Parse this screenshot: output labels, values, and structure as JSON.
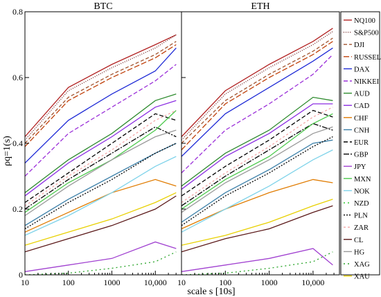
{
  "chart_data": {
    "type": "line",
    "panels": [
      {
        "title": "BTC",
        "x_max_log": 4.48
      },
      {
        "title": "ETH",
        "x_max_log": 4.45
      }
    ],
    "xlabel": "scale s [10s]",
    "ylabel": "ρq=1(s)",
    "xscale": "log",
    "xlim": [
      10,
      40000
    ],
    "ylim": [
      0,
      0.8
    ],
    "x_ticks": [
      {
        "value": 10,
        "label": "10"
      },
      {
        "value": 100,
        "label": "100"
      },
      {
        "value": 1000,
        "label": "1000"
      },
      {
        "value": 10000,
        "label": "10,000"
      }
    ],
    "y_ticks": [
      {
        "value": 0,
        "label": "0"
      },
      {
        "value": 0.2,
        "label": "0.2"
      },
      {
        "value": 0.4,
        "label": "0.4"
      },
      {
        "value": 0.6,
        "label": "0.6"
      },
      {
        "value": 0.8,
        "label": "0.8"
      }
    ],
    "legend_position": "right",
    "series": [
      {
        "name": "NQ100",
        "color": "#b22222",
        "dash": "",
        "btc": [
          [
            1.0,
            0.42
          ],
          [
            2.0,
            0.57
          ],
          [
            3.0,
            0.64
          ],
          [
            4.0,
            0.7
          ],
          [
            4.48,
            0.73
          ]
        ],
        "eth": [
          [
            1.0,
            0.42
          ],
          [
            2.0,
            0.56
          ],
          [
            3.0,
            0.64
          ],
          [
            4.0,
            0.71
          ],
          [
            4.45,
            0.75
          ]
        ]
      },
      {
        "name": "S&P500",
        "color": "#6b1f1f",
        "dash": "1,2",
        "btc": [
          [
            1.0,
            0.41
          ],
          [
            2.0,
            0.56
          ],
          [
            3.0,
            0.63
          ],
          [
            4.0,
            0.69
          ],
          [
            4.48,
            0.73
          ]
        ],
        "eth": [
          [
            1.0,
            0.41
          ],
          [
            2.0,
            0.55
          ],
          [
            3.0,
            0.63
          ],
          [
            4.0,
            0.7
          ],
          [
            4.45,
            0.74
          ]
        ]
      },
      {
        "name": "DJI",
        "color": "#a0522d",
        "dash": "5,3",
        "btc": [
          [
            1.0,
            0.4
          ],
          [
            2.0,
            0.54
          ],
          [
            3.0,
            0.61
          ],
          [
            4.0,
            0.67
          ],
          [
            4.48,
            0.71
          ]
        ],
        "eth": [
          [
            1.0,
            0.4
          ],
          [
            2.0,
            0.53
          ],
          [
            3.0,
            0.61
          ],
          [
            4.0,
            0.68
          ],
          [
            4.45,
            0.72
          ]
        ]
      },
      {
        "name": "RUSSEL",
        "color": "#c0400a",
        "dash": "8,3",
        "btc": [
          [
            1.0,
            0.39
          ],
          [
            2.0,
            0.53
          ],
          [
            3.0,
            0.6
          ],
          [
            4.0,
            0.66
          ],
          [
            4.48,
            0.7
          ]
        ],
        "eth": [
          [
            1.0,
            0.38
          ],
          [
            2.0,
            0.52
          ],
          [
            3.0,
            0.6
          ],
          [
            4.0,
            0.67
          ],
          [
            4.45,
            0.71
          ]
        ]
      },
      {
        "name": "DAX",
        "color": "#1f2bd6",
        "dash": "",
        "btc": [
          [
            1.0,
            0.34
          ],
          [
            2.0,
            0.47
          ],
          [
            3.0,
            0.55
          ],
          [
            4.0,
            0.62
          ],
          [
            4.48,
            0.69
          ]
        ],
        "eth": [
          [
            1.0,
            0.36
          ],
          [
            2.0,
            0.49
          ],
          [
            3.0,
            0.57
          ],
          [
            4.0,
            0.65
          ],
          [
            4.45,
            0.69
          ]
        ]
      },
      {
        "name": "NIKKEI",
        "color": "#9b30d9",
        "dash": "6,3",
        "btc": [
          [
            1.0,
            0.3
          ],
          [
            2.0,
            0.43
          ],
          [
            3.0,
            0.51
          ],
          [
            4.0,
            0.59
          ],
          [
            4.48,
            0.64
          ]
        ],
        "eth": [
          [
            1.0,
            0.31
          ],
          [
            2.0,
            0.44
          ],
          [
            3.0,
            0.52
          ],
          [
            4.0,
            0.61
          ],
          [
            4.45,
            0.67
          ]
        ]
      },
      {
        "name": "AUD",
        "color": "#2e8b2e",
        "dash": "",
        "btc": [
          [
            1.0,
            0.25
          ],
          [
            2.0,
            0.35
          ],
          [
            3.0,
            0.43
          ],
          [
            4.0,
            0.53
          ],
          [
            4.48,
            0.55
          ]
        ],
        "eth": [
          [
            1.0,
            0.27
          ],
          [
            2.0,
            0.37
          ],
          [
            3.0,
            0.44
          ],
          [
            4.0,
            0.54
          ],
          [
            4.45,
            0.53
          ]
        ]
      },
      {
        "name": "CAD",
        "color": "#8a2be2",
        "dash": "",
        "btc": [
          [
            1.0,
            0.24
          ],
          [
            2.0,
            0.34
          ],
          [
            3.0,
            0.42
          ],
          [
            4.0,
            0.51
          ],
          [
            4.48,
            0.53
          ]
        ],
        "eth": [
          [
            1.0,
            0.26
          ],
          [
            2.0,
            0.36
          ],
          [
            3.0,
            0.43
          ],
          [
            4.0,
            0.52
          ],
          [
            4.45,
            0.52
          ]
        ]
      },
      {
        "name": "CHF",
        "color": "#e07b00",
        "dash": "",
        "btc": [
          [
            1.0,
            0.13
          ],
          [
            2.0,
            0.19
          ],
          [
            3.0,
            0.25
          ],
          [
            4.0,
            0.29
          ],
          [
            4.48,
            0.27
          ]
        ],
        "eth": [
          [
            1.0,
            0.14
          ],
          [
            2.0,
            0.2
          ],
          [
            3.0,
            0.25
          ],
          [
            4.0,
            0.29
          ],
          [
            4.45,
            0.28
          ]
        ]
      },
      {
        "name": "CNH",
        "color": "#3a7fa8",
        "dash": "",
        "btc": [
          [
            1.0,
            0.15
          ],
          [
            2.0,
            0.23
          ],
          [
            3.0,
            0.3
          ],
          [
            4.0,
            0.37
          ],
          [
            4.48,
            0.4
          ]
        ],
        "eth": [
          [
            1.0,
            0.16
          ],
          [
            2.0,
            0.25
          ],
          [
            3.0,
            0.32
          ],
          [
            4.0,
            0.4
          ],
          [
            4.45,
            0.41
          ]
        ]
      },
      {
        "name": "EUR",
        "color": "#000000",
        "dash": "6,3",
        "btc": [
          [
            1.0,
            0.22
          ],
          [
            2.0,
            0.31
          ],
          [
            3.0,
            0.4
          ],
          [
            4.0,
            0.49
          ],
          [
            4.48,
            0.47
          ]
        ],
        "eth": [
          [
            1.0,
            0.24
          ],
          [
            2.0,
            0.33
          ],
          [
            3.0,
            0.41
          ],
          [
            4.0,
            0.5
          ],
          [
            4.45,
            0.48
          ]
        ]
      },
      {
        "name": "GBP",
        "color": "#000000",
        "dash": "8,2,2,2",
        "btc": [
          [
            1.0,
            0.2
          ],
          [
            2.0,
            0.29
          ],
          [
            3.0,
            0.37
          ],
          [
            4.0,
            0.45
          ],
          [
            4.48,
            0.42
          ]
        ],
        "eth": [
          [
            1.0,
            0.21
          ],
          [
            2.0,
            0.3
          ],
          [
            3.0,
            0.38
          ],
          [
            4.0,
            0.46
          ],
          [
            4.45,
            0.44
          ]
        ]
      },
      {
        "name": "JPY",
        "color": "#a040d0",
        "dash": "",
        "btc": [
          [
            1.0,
            0.01
          ],
          [
            2.0,
            0.03
          ],
          [
            3.0,
            0.05
          ],
          [
            4.0,
            0.1
          ],
          [
            4.48,
            0.08
          ]
        ],
        "eth": [
          [
            1.0,
            0.01
          ],
          [
            2.0,
            0.03
          ],
          [
            3.0,
            0.05
          ],
          [
            4.0,
            0.08
          ],
          [
            4.45,
            0.03
          ]
        ]
      },
      {
        "name": "MXN",
        "color": "#4cc94c",
        "dash": "",
        "btc": [
          [
            1.0,
            0.19
          ],
          [
            2.0,
            0.28
          ],
          [
            3.0,
            0.35
          ],
          [
            4.0,
            0.44
          ],
          [
            4.48,
            0.5
          ]
        ],
        "eth": [
          [
            1.0,
            0.2
          ],
          [
            2.0,
            0.29
          ],
          [
            3.0,
            0.36
          ],
          [
            4.0,
            0.46
          ],
          [
            4.45,
            0.49
          ]
        ]
      },
      {
        "name": "NOK",
        "color": "#7fd3ea",
        "dash": "",
        "btc": [
          [
            1.0,
            0.12
          ],
          [
            2.0,
            0.18
          ],
          [
            3.0,
            0.25
          ],
          [
            4.0,
            0.33
          ],
          [
            4.48,
            0.36
          ]
        ],
        "eth": [
          [
            1.0,
            0.13
          ],
          [
            2.0,
            0.2
          ],
          [
            3.0,
            0.27
          ],
          [
            4.0,
            0.35
          ],
          [
            4.45,
            0.38
          ]
        ]
      },
      {
        "name": "NZD",
        "color": "#33cc33",
        "dash": "2,4",
        "btc": [
          [
            1.0,
            0.0
          ],
          [
            2.0,
            -0.005
          ],
          [
            3.0,
            -0.02
          ],
          [
            4.0,
            -0.05
          ],
          [
            4.48,
            -0.08
          ]
        ],
        "eth": [
          [
            1.0,
            0.0
          ],
          [
            2.0,
            -0.005
          ],
          [
            3.0,
            -0.02
          ],
          [
            4.0,
            -0.05
          ],
          [
            4.45,
            -0.08
          ]
        ]
      },
      {
        "name": "PLN",
        "color": "#000000",
        "dash": "2,2",
        "btc": [
          [
            1.0,
            0.14
          ],
          [
            2.0,
            0.22
          ],
          [
            3.0,
            0.29
          ],
          [
            4.0,
            0.37
          ],
          [
            4.48,
            0.4
          ]
        ],
        "eth": [
          [
            1.0,
            0.15
          ],
          [
            2.0,
            0.24
          ],
          [
            3.0,
            0.31
          ],
          [
            4.0,
            0.39
          ],
          [
            4.45,
            0.42
          ]
        ]
      },
      {
        "name": "ZAR",
        "color": "#f3a6a6",
        "dash": "3,3",
        "btc": [
          [
            1.0,
            0.21
          ],
          [
            2.0,
            0.3
          ],
          [
            3.0,
            0.38
          ],
          [
            4.0,
            0.47
          ],
          [
            4.48,
            0.5
          ]
        ],
        "eth": [
          [
            1.0,
            0.22
          ],
          [
            2.0,
            0.31
          ],
          [
            3.0,
            0.39
          ],
          [
            4.0,
            0.48
          ],
          [
            4.45,
            0.51
          ]
        ]
      },
      {
        "name": "CL",
        "color": "#5a1818",
        "dash": "",
        "btc": [
          [
            1.0,
            0.07
          ],
          [
            2.0,
            0.11
          ],
          [
            3.0,
            0.15
          ],
          [
            4.0,
            0.2
          ],
          [
            4.48,
            0.24
          ]
        ],
        "eth": [
          [
            1.0,
            0.07
          ],
          [
            2.0,
            0.11
          ],
          [
            3.0,
            0.14
          ],
          [
            4.0,
            0.19
          ],
          [
            4.45,
            0.21
          ]
        ]
      },
      {
        "name": "HG",
        "color": "#999999",
        "dash": "",
        "btc": [
          [
            1.0,
            0.18
          ],
          [
            2.0,
            0.27
          ],
          [
            3.0,
            0.35
          ],
          [
            4.0,
            0.42
          ],
          [
            4.48,
            0.44
          ]
        ],
        "eth": [
          [
            1.0,
            0.19
          ],
          [
            2.0,
            0.28
          ],
          [
            3.0,
            0.35
          ],
          [
            4.0,
            0.43
          ],
          [
            4.45,
            0.45
          ]
        ]
      },
      {
        "name": "XAG",
        "color": "#2aa52a",
        "dash": "2,4",
        "btc": [
          [
            1.0,
            0.0
          ],
          [
            2.0,
            0.005
          ],
          [
            3.0,
            0.02
          ],
          [
            4.0,
            0.04
          ],
          [
            4.48,
            0.07
          ]
        ],
        "eth": [
          [
            1.0,
            0.0
          ],
          [
            2.0,
            0.005
          ],
          [
            3.0,
            0.02
          ],
          [
            4.0,
            0.04
          ],
          [
            4.45,
            0.07
          ]
        ]
      },
      {
        "name": "XAU",
        "color": "#e8d000",
        "dash": "",
        "btc": [
          [
            1.0,
            0.09
          ],
          [
            2.0,
            0.13
          ],
          [
            3.0,
            0.17
          ],
          [
            4.0,
            0.22
          ],
          [
            4.48,
            0.25
          ]
        ],
        "eth": [
          [
            1.0,
            0.09
          ],
          [
            2.0,
            0.12
          ],
          [
            3.0,
            0.16
          ],
          [
            4.0,
            0.21
          ],
          [
            4.45,
            0.23
          ]
        ]
      }
    ]
  }
}
